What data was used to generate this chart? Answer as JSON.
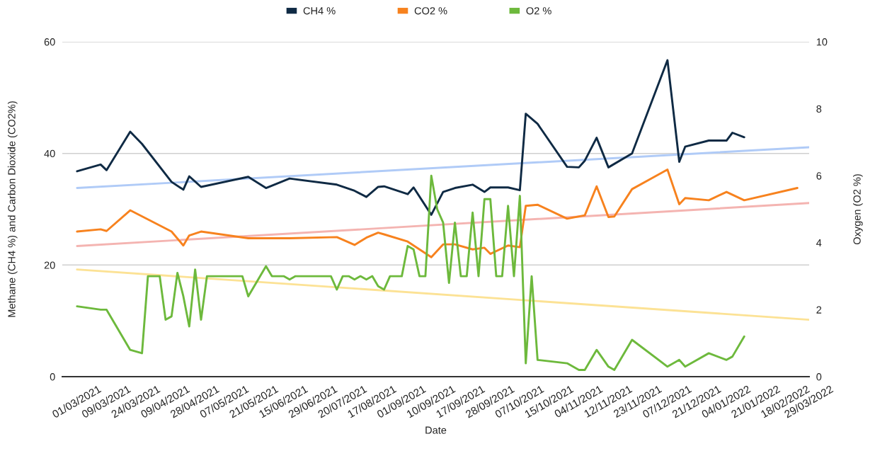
{
  "chart_data": {
    "type": "line",
    "xlabel": "Date",
    "ylabel": "Methane (CH4 %) and Carbon Dioxide (CO2%)",
    "y2label": "Oxygen (O2 %)",
    "categories": [
      "01/03/2021",
      null,
      null,
      null,
      null,
      "09/03/2021",
      null,
      null,
      null,
      null,
      "24/03/2021",
      null,
      null,
      null,
      null,
      "09/04/2021",
      null,
      null,
      null,
      null,
      "28/04/2021",
      null,
      null,
      null,
      null,
      "07/05/2021",
      null,
      null,
      null,
      null,
      "21/05/2021",
      null,
      null,
      null,
      null,
      "15/06/2021",
      null,
      null,
      null,
      null,
      "29/06/2021",
      null,
      null,
      null,
      null,
      "20/07/2021",
      null,
      null,
      null,
      null,
      "17/08/2021",
      null,
      null,
      null,
      null,
      "01/09/2021",
      null,
      null,
      null,
      null,
      "10/09/2021",
      null,
      null,
      null,
      null,
      "17/09/2021",
      null,
      null,
      null,
      null,
      "28/09/2021",
      null,
      null,
      null,
      null,
      "07/10/2021",
      null,
      null,
      null,
      null,
      "15/10/2021",
      null,
      null,
      null,
      null,
      "04/11/2021",
      null,
      null,
      null,
      null,
      "12/11/2021",
      null,
      null,
      null,
      null,
      "23/11/2021",
      null,
      null,
      null,
      null,
      "07/12/2021",
      null,
      null,
      null,
      null,
      "21/12/2021",
      null,
      null,
      null,
      null,
      "04/01/2022",
      null,
      null,
      null,
      null,
      "21/01/2022",
      null,
      null,
      null,
      null,
      "18/02/2022",
      null,
      null,
      null,
      "29/03/2022"
    ],
    "series": [
      {
        "type": "line",
        "color": "#b0cbf7",
        "x": [
          "01/03/2021",
          "29/03/2022"
        ],
        "values": [
          33.8,
          41.1
        ]
      },
      {
        "type": "line",
        "color": "#f4b4b1",
        "x": [
          "01/03/2021",
          "29/03/2022"
        ],
        "values": [
          23.4,
          31.1
        ]
      },
      {
        "type": "line",
        "color": "#fce295",
        "axis": "y2",
        "x": [
          "01/03/2021",
          "29/03/2022"
        ],
        "values": [
          3.2,
          1.7
        ]
      },
      {
        "name": "CH4 %",
        "color": "#0f2a44",
        "values": [
          36.8,
          null,
          null,
          null,
          38.0,
          37.0,
          null,
          null,
          null,
          43.9,
          null,
          41.7,
          null,
          null,
          null,
          null,
          34.9,
          null,
          33.5,
          35.9,
          null,
          34.0,
          null,
          null,
          null,
          null,
          null,
          null,
          null,
          35.8,
          null,
          null,
          33.8,
          null,
          null,
          null,
          35.5,
          null,
          null,
          null,
          null,
          null,
          null,
          null,
          34.4,
          null,
          null,
          33.3,
          null,
          32.2,
          null,
          34.0,
          34.1,
          null,
          null,
          null,
          32.7,
          33.9,
          null,
          null,
          29.0,
          null,
          33.1,
          null,
          33.8,
          null,
          null,
          34.4,
          null,
          33.1,
          33.9,
          null,
          null,
          33.9,
          null,
          33.4,
          47.1,
          null,
          45.3,
          null,
          null,
          null,
          null,
          37.6,
          null,
          37.5,
          38.7,
          null,
          42.8,
          null,
          37.5,
          null,
          null,
          null,
          40.0,
          null,
          null,
          null,
          null,
          null,
          56.7,
          null,
          38.5,
          41.2,
          null,
          null,
          null,
          42.3,
          null,
          null,
          42.3,
          43.7,
          null,
          42.9,
          null,
          null,
          null,
          null,
          null,
          null,
          null,
          null,
          null,
          null,
          null
        ]
      },
      {
        "name": "CO2 %",
        "color": "#f7821e",
        "values": [
          26.0,
          null,
          null,
          null,
          26.4,
          26.1,
          null,
          null,
          null,
          29.8,
          null,
          null,
          null,
          null,
          null,
          null,
          26.0,
          null,
          23.5,
          25.3,
          null,
          26.0,
          null,
          null,
          null,
          null,
          null,
          null,
          null,
          24.8,
          null,
          null,
          null,
          null,
          null,
          null,
          24.8,
          null,
          null,
          null,
          null,
          null,
          null,
          null,
          25.0,
          null,
          null,
          23.6,
          null,
          24.9,
          null,
          25.8,
          25.5,
          null,
          null,
          null,
          24.2,
          null,
          null,
          null,
          21.4,
          null,
          23.7,
          null,
          23.7,
          null,
          null,
          22.8,
          null,
          23.1,
          22.0,
          null,
          null,
          23.5,
          null,
          23.2,
          30.6,
          null,
          30.8,
          null,
          null,
          null,
          null,
          28.3,
          null,
          null,
          28.9,
          null,
          34.1,
          null,
          28.6,
          28.7,
          null,
          null,
          33.6,
          null,
          null,
          null,
          null,
          null,
          37.1,
          null,
          30.9,
          32.0,
          null,
          null,
          null,
          31.6,
          null,
          null,
          33.1,
          null,
          null,
          31.6,
          null,
          null,
          null,
          null,
          null,
          null,
          null,
          null,
          33.8,
          null,
          null
        ]
      },
      {
        "name": "O2 %",
        "color": "#6db93c",
        "axis": "y2",
        "values": [
          2.1,
          null,
          null,
          null,
          2.0,
          2.0,
          null,
          null,
          null,
          0.8,
          null,
          0.7,
          3.0,
          null,
          3.0,
          1.7,
          1.8,
          3.1,
          2.4,
          1.5,
          3.2,
          1.7,
          3.0,
          null,
          null,
          null,
          null,
          null,
          3.0,
          2.4,
          null,
          null,
          3.3,
          3.0,
          null,
          3.0,
          2.9,
          3.0,
          null,
          null,
          null,
          null,
          null,
          3.0,
          2.6,
          3.0,
          3.0,
          2.9,
          3.0,
          2.9,
          3.0,
          2.7,
          2.6,
          3.0,
          null,
          3.0,
          3.9,
          3.8,
          3.0,
          3.0,
          6.0,
          5.0,
          4.6,
          2.8,
          4.6,
          3.0,
          3.0,
          4.9,
          3.0,
          5.3,
          5.3,
          3.0,
          3.0,
          5.1,
          3.0,
          5.4,
          0.4,
          3.0,
          0.5,
          null,
          null,
          null,
          null,
          0.4,
          null,
          0.2,
          0.2,
          null,
          0.8,
          null,
          0.3,
          0.2,
          null,
          null,
          1.1,
          null,
          null,
          null,
          null,
          null,
          0.3,
          null,
          0.5,
          0.3,
          null,
          null,
          null,
          0.7,
          null,
          null,
          0.5,
          0.6,
          null,
          1.2,
          null,
          null,
          null,
          null,
          null,
          null,
          null,
          null,
          null,
          null,
          null
        ]
      }
    ],
    "ylim": [
      0,
      60
    ],
    "yticks": [
      0,
      20,
      40,
      60
    ],
    "y2lim": [
      0,
      10
    ],
    "y2ticks": [
      0,
      2,
      4,
      6,
      8,
      10
    ],
    "grid": "y",
    "legend": "top"
  }
}
